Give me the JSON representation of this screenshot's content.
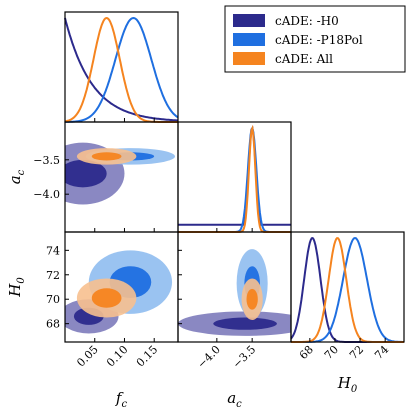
{
  "chart_data": {
    "type": "corner",
    "params": [
      {
        "key": "fc",
        "label": "f_c",
        "label_main": "f",
        "label_sub": "c",
        "range": [
          0.0,
          0.19
        ],
        "ticks": [
          0.05,
          0.1,
          0.15
        ],
        "tick_labels": [
          "0.05",
          "0.10",
          "0.15"
        ]
      },
      {
        "key": "ac",
        "label": "a_c",
        "label_main": "a",
        "label_sub": "c",
        "range": [
          -4.55,
          -2.95
        ],
        "ticks": [
          -4.0,
          -3.5
        ],
        "tick_labels": [
          "−4.0",
          "−3.5"
        ]
      },
      {
        "key": "H0",
        "label": "H_0",
        "label_main": "H",
        "label_sub": "0",
        "range": [
          66.5,
          75.5
        ],
        "ticks": [
          68,
          70,
          72,
          74
        ],
        "tick_labels": [
          "68",
          "70",
          "72",
          "74"
        ]
      }
    ],
    "legend": {
      "placement": "top-right"
    },
    "series": [
      {
        "name": "cADE: -H0",
        "color": "#2c2a8c",
        "color_light": "#7d7bbb",
        "fc": {
          "kind": "decay",
          "scale": 0.045
        },
        "ac": {
          "kind": "peak_tail",
          "mean": -3.5,
          "sigma": 0.05,
          "tail": 0.07
        },
        "H0": {
          "mean": 68.2,
          "sigma": 0.65
        },
        "contours": [
          {
            "pair": "fc-ac",
            "cx": 0.03,
            "cy": -3.7,
            "rx": 0.07,
            "ry": 0.45,
            "inner_rx": 0.04,
            "inner_ry": 0.2
          },
          {
            "pair": "fc-H0",
            "cx": 0.04,
            "cy": 68.6,
            "rx": 0.05,
            "ry": 1.4,
            "inner_rx": 0.025,
            "inner_ry": 0.7
          },
          {
            "pair": "ac-H0",
            "cx": -3.6,
            "cy": 68.0,
            "rx": 0.95,
            "ry": 1.0,
            "inner_rx": 0.45,
            "inner_ry": 0.5
          }
        ]
      },
      {
        "name": "cADE: -P18Pol",
        "color": "#1f6fe0",
        "color_light": "#8fbcf0",
        "fc": {
          "kind": "gauss",
          "mean": 0.115,
          "sigma": 0.03
        },
        "ac": {
          "kind": "gauss",
          "mean": -3.5,
          "sigma": 0.06
        },
        "H0": {
          "mean": 71.6,
          "sigma": 0.95
        },
        "contours": [
          {
            "pair": "fc-ac",
            "cx": 0.11,
            "cy": -3.45,
            "rx": 0.075,
            "ry": 0.12,
            "inner_rx": 0.04,
            "inner_ry": 0.06
          },
          {
            "pair": "fc-H0",
            "cx": 0.11,
            "cy": 71.4,
            "rx": 0.07,
            "ry": 2.6,
            "inner_rx": 0.035,
            "inner_ry": 1.3
          },
          {
            "pair": "ac-H0",
            "cx": -3.5,
            "cy": 71.3,
            "rx": 0.22,
            "ry": 2.8,
            "inner_rx": 0.11,
            "inner_ry": 1.4
          }
        ]
      },
      {
        "name": "cADE: All",
        "color": "#f5841f",
        "color_light": "#f7c08f",
        "fc": {
          "kind": "gauss",
          "mean": 0.07,
          "sigma": 0.022
        },
        "ac": {
          "kind": "gauss",
          "mean": -3.5,
          "sigma": 0.045
        },
        "H0": {
          "mean": 70.2,
          "sigma": 0.7
        },
        "contours": [
          {
            "pair": "fc-ac",
            "cx": 0.07,
            "cy": -3.45,
            "rx": 0.05,
            "ry": 0.12,
            "inner_rx": 0.025,
            "inner_ry": 0.06
          },
          {
            "pair": "fc-H0",
            "cx": 0.07,
            "cy": 70.1,
            "rx": 0.05,
            "ry": 1.6,
            "inner_rx": 0.025,
            "inner_ry": 0.8
          },
          {
            "pair": "ac-H0",
            "cx": -3.5,
            "cy": 70.0,
            "rx": 0.15,
            "ry": 1.7,
            "inner_rx": 0.08,
            "inner_ry": 0.85
          }
        ]
      }
    ]
  }
}
